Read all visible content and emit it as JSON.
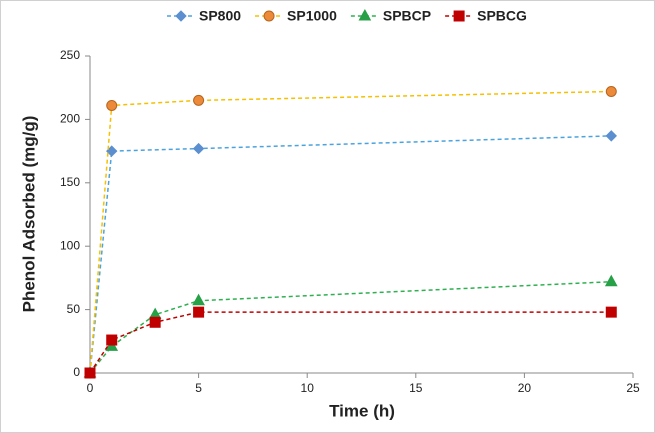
{
  "chart_data": {
    "type": "line",
    "x_label": "Time (h)",
    "y_label": "Phenol  Adsorbed (mg/g)",
    "xlim": [
      0,
      25
    ],
    "xticks": [
      0,
      5,
      10,
      15,
      20,
      25
    ],
    "ylim": [
      0,
      250
    ],
    "yticks": [
      0,
      50,
      100,
      150,
      200,
      250
    ],
    "grid": false,
    "legend": "top",
    "series": [
      {
        "name": "SP800",
        "color": "#4ba3de",
        "marker": "diamond",
        "marker_color": "#5b8fd0",
        "x": [
          0,
          1,
          5,
          24
        ],
        "values": [
          0,
          175,
          177,
          187
        ]
      },
      {
        "name": "SP1000",
        "color": "#f5c000",
        "marker": "circle",
        "marker_color": "#ed8a3a",
        "x": [
          0,
          1,
          5,
          24
        ],
        "values": [
          0,
          211,
          215,
          222
        ]
      },
      {
        "name": "SPBCP",
        "color": "#2fb050",
        "marker": "triangle",
        "marker_color": "#27a048",
        "x": [
          0,
          1,
          3,
          5,
          24
        ],
        "values": [
          0,
          21,
          46,
          57,
          72
        ]
      },
      {
        "name": "SPBCG",
        "color": "#c00000",
        "marker": "square",
        "marker_color": "#c00000",
        "x": [
          0,
          1,
          3,
          5,
          24
        ],
        "values": [
          0,
          26,
          40,
          48,
          48
        ]
      }
    ]
  }
}
